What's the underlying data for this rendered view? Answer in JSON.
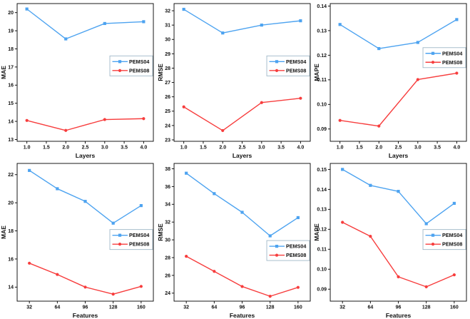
{
  "colors": {
    "pems04_blue": "#4da3f0",
    "pems08_red": "#f73d3d",
    "axis": "#000000",
    "text": "#111111",
    "legend_border": "#a0b8c8",
    "background": "#ffffff"
  },
  "legend": {
    "entries": [
      "PEMS04",
      "PEMS08"
    ],
    "position": "inside-right"
  },
  "chart_data": [
    {
      "name": "mae-vs-layers",
      "type": "line",
      "grid": false,
      "xlabel": "Layers",
      "ylabel": "MAE",
      "x": [
        1,
        2,
        3,
        4
      ],
      "xlim": [
        0.75,
        4.25
      ],
      "ylim": [
        12.9,
        20.5
      ],
      "xticks": [
        1.0,
        1.5,
        2.0,
        2.5,
        3.0,
        3.5,
        4.0
      ],
      "xtick_labels": [
        "1.0",
        "1.5",
        "2.0",
        "2.5",
        "3.0",
        "3.5",
        "4.0"
      ],
      "yticks": [
        13,
        14,
        15,
        16,
        17,
        18,
        19,
        20
      ],
      "ytick_labels": [
        "13",
        "14",
        "15",
        "16",
        "17",
        "18",
        "19",
        "20"
      ],
      "series": [
        {
          "name": "PEMS04",
          "color": "#4da3f0",
          "marker": "square",
          "values": [
            20.2,
            18.55,
            19.4,
            19.5
          ]
        },
        {
          "name": "PEMS08",
          "color": "#f73d3d",
          "marker": "circle",
          "values": [
            14.05,
            13.5,
            14.1,
            14.15
          ]
        }
      ],
      "legend_fy": 0.38
    },
    {
      "name": "rmse-vs-layers",
      "type": "line",
      "grid": false,
      "xlabel": "Layers",
      "ylabel": "RMSE",
      "x": [
        1,
        2,
        3,
        4
      ],
      "xlim": [
        0.75,
        4.25
      ],
      "ylim": [
        22.9,
        32.5
      ],
      "xticks": [
        1.0,
        1.5,
        2.0,
        2.5,
        3.0,
        3.5,
        4.0
      ],
      "xtick_labels": [
        "1.0",
        "1.5",
        "2.0",
        "2.5",
        "3.0",
        "3.5",
        "4.0"
      ],
      "yticks": [
        23,
        24,
        25,
        26,
        27,
        28,
        29,
        30,
        31,
        32
      ],
      "ytick_labels": [
        "23",
        "24",
        "25",
        "26",
        "27",
        "28",
        "29",
        "30",
        "31",
        "32"
      ],
      "series": [
        {
          "name": "PEMS04",
          "color": "#4da3f0",
          "marker": "square",
          "values": [
            32.1,
            30.45,
            31.0,
            31.3
          ]
        },
        {
          "name": "PEMS08",
          "color": "#f73d3d",
          "marker": "circle",
          "values": [
            25.3,
            23.65,
            25.6,
            25.9
          ]
        }
      ],
      "legend_fy": 0.38
    },
    {
      "name": "mape-vs-layers",
      "type": "line",
      "grid": false,
      "xlabel": "Layers",
      "ylabel": "MAPE",
      "x": [
        1,
        2,
        3,
        4
      ],
      "xlim": [
        0.75,
        4.25
      ],
      "ylim": [
        0.085,
        0.141
      ],
      "xticks": [
        1.0,
        1.5,
        2.0,
        2.5,
        3.0,
        3.5,
        4.0
      ],
      "xtick_labels": [
        "1.0",
        "1.5",
        "2.0",
        "2.5",
        "3.0",
        "3.5",
        "4.0"
      ],
      "yticks": [
        0.09,
        0.1,
        0.11,
        0.12,
        0.13,
        0.14
      ],
      "ytick_labels": [
        "0.09",
        "0.10",
        "0.11",
        "0.12",
        "0.13",
        "0.14"
      ],
      "series": [
        {
          "name": "PEMS04",
          "color": "#4da3f0",
          "marker": "square",
          "values": [
            0.1325,
            0.1227,
            0.1252,
            0.1345
          ]
        },
        {
          "name": "PEMS08",
          "color": "#f73d3d",
          "marker": "circle",
          "values": [
            0.0935,
            0.0912,
            0.1101,
            0.1127
          ]
        }
      ],
      "legend_fy": 0.32
    },
    {
      "name": "mae-vs-features",
      "type": "line",
      "grid": false,
      "xlabel": "Features",
      "ylabel": "MAE",
      "x": [
        32,
        64,
        96,
        128,
        160
      ],
      "xlim": [
        18,
        174
      ],
      "ylim": [
        13.0,
        22.8
      ],
      "xticks": [
        32,
        64,
        96,
        128,
        160
      ],
      "xtick_labels": [
        "32",
        "64",
        "96",
        "128",
        "160"
      ],
      "yticks": [
        14,
        16,
        18,
        20,
        22
      ],
      "ytick_labels": [
        "14",
        "16",
        "18",
        "20",
        "22"
      ],
      "series": [
        {
          "name": "PEMS04",
          "color": "#4da3f0",
          "marker": "square",
          "values": [
            22.3,
            21.0,
            20.1,
            18.55,
            19.8
          ]
        },
        {
          "name": "PEMS08",
          "color": "#f73d3d",
          "marker": "circle",
          "values": [
            15.7,
            14.9,
            14.0,
            13.5,
            14.05
          ]
        }
      ],
      "legend_fy": 0.48
    },
    {
      "name": "rmse-vs-features",
      "type": "line",
      "grid": false,
      "xlabel": "Features",
      "ylabel": "RMSE",
      "x": [
        32,
        64,
        96,
        128,
        160
      ],
      "xlim": [
        18,
        174
      ],
      "ylim": [
        23.1,
        38.6
      ],
      "xticks": [
        32,
        64,
        96,
        128,
        160
      ],
      "xtick_labels": [
        "32",
        "64",
        "96",
        "128",
        "160"
      ],
      "yticks": [
        24,
        26,
        28,
        30,
        32,
        34,
        36,
        38
      ],
      "ytick_labels": [
        "24",
        "26",
        "28",
        "30",
        "32",
        "34",
        "36",
        "38"
      ],
      "series": [
        {
          "name": "PEMS04",
          "color": "#4da3f0",
          "marker": "square",
          "values": [
            37.5,
            35.2,
            33.1,
            30.45,
            32.5
          ]
        },
        {
          "name": "PEMS08",
          "color": "#f73d3d",
          "marker": "circle",
          "values": [
            28.15,
            26.45,
            24.75,
            23.65,
            24.65
          ]
        }
      ],
      "legend_fy": 0.56
    },
    {
      "name": "mape-vs-features",
      "type": "line",
      "grid": false,
      "xlabel": "Features",
      "ylabel": "MAPE",
      "x": [
        32,
        64,
        96,
        128,
        160
      ],
      "xlim": [
        18,
        174
      ],
      "ylim": [
        0.084,
        0.153
      ],
      "xticks": [
        32,
        64,
        96,
        128,
        160
      ],
      "xtick_labels": [
        "32",
        "64",
        "96",
        "128",
        "160"
      ],
      "yticks": [
        0.09,
        0.1,
        0.11,
        0.12,
        0.13,
        0.14,
        0.15
      ],
      "ytick_labels": [
        "0.09",
        "0.10",
        "0.11",
        "0.12",
        "0.13",
        "0.14",
        "0.15"
      ],
      "series": [
        {
          "name": "PEMS04",
          "color": "#4da3f0",
          "marker": "square",
          "values": [
            0.15,
            0.142,
            0.139,
            0.1228,
            0.133
          ]
        },
        {
          "name": "PEMS08",
          "color": "#f73d3d",
          "marker": "circle",
          "values": [
            0.1235,
            0.1165,
            0.0962,
            0.0912,
            0.0972
          ]
        }
      ],
      "legend_fy": 0.48
    }
  ]
}
